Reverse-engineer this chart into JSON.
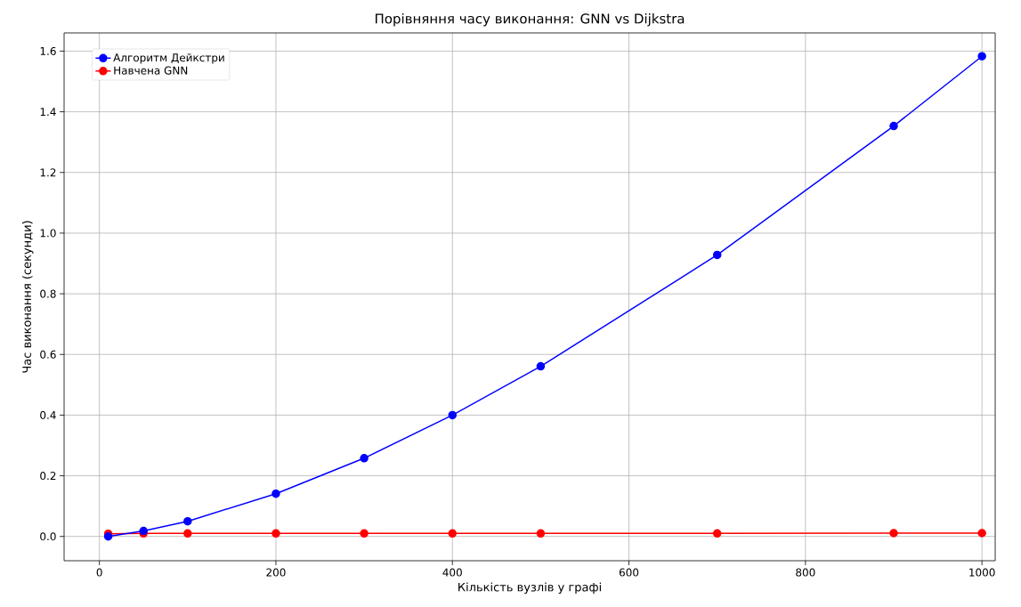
{
  "chart_data": {
    "type": "line",
    "title": "Порівняння часу виконання: GNN vs Dijkstra",
    "xlabel": "Кількість вузлів у графі",
    "ylabel": "Час виконання (секунди)",
    "x": [
      10,
      50,
      100,
      200,
      300,
      400,
      500,
      700,
      900,
      1000
    ],
    "series": [
      {
        "name": "Алгоритм Дейкстри",
        "color": "#0000ff",
        "values": [
          0.0,
          0.018,
          0.05,
          0.141,
          0.258,
          0.4,
          0.561,
          0.928,
          1.353,
          1.583
        ]
      },
      {
        "name": "Навчена GNN",
        "color": "#ff0000",
        "values": [
          0.009,
          0.01,
          0.01,
          0.01,
          0.01,
          0.01,
          0.01,
          0.01,
          0.011,
          0.011
        ]
      }
    ],
    "xlim": [
      -40,
      1015
    ],
    "ylim": [
      -0.08,
      1.66
    ],
    "xticks": [
      0,
      200,
      400,
      600,
      800,
      1000
    ],
    "yticks": [
      {
        "value": 0,
        "label": "0.0"
      },
      {
        "value": 0.2,
        "label": "0.2"
      },
      {
        "value": 0.4,
        "label": "0.4"
      },
      {
        "value": 0.6,
        "label": "0.6"
      },
      {
        "value": 0.8,
        "label": "0.8"
      },
      {
        "value": 1.0,
        "label": "1.0"
      },
      {
        "value": 1.2,
        "label": "1.2"
      },
      {
        "value": 1.4,
        "label": "1.4"
      },
      {
        "value": 1.6,
        "label": "1.6"
      }
    ],
    "grid": true,
    "legend": "top left",
    "marker": "circle",
    "line_style": "solid"
  }
}
